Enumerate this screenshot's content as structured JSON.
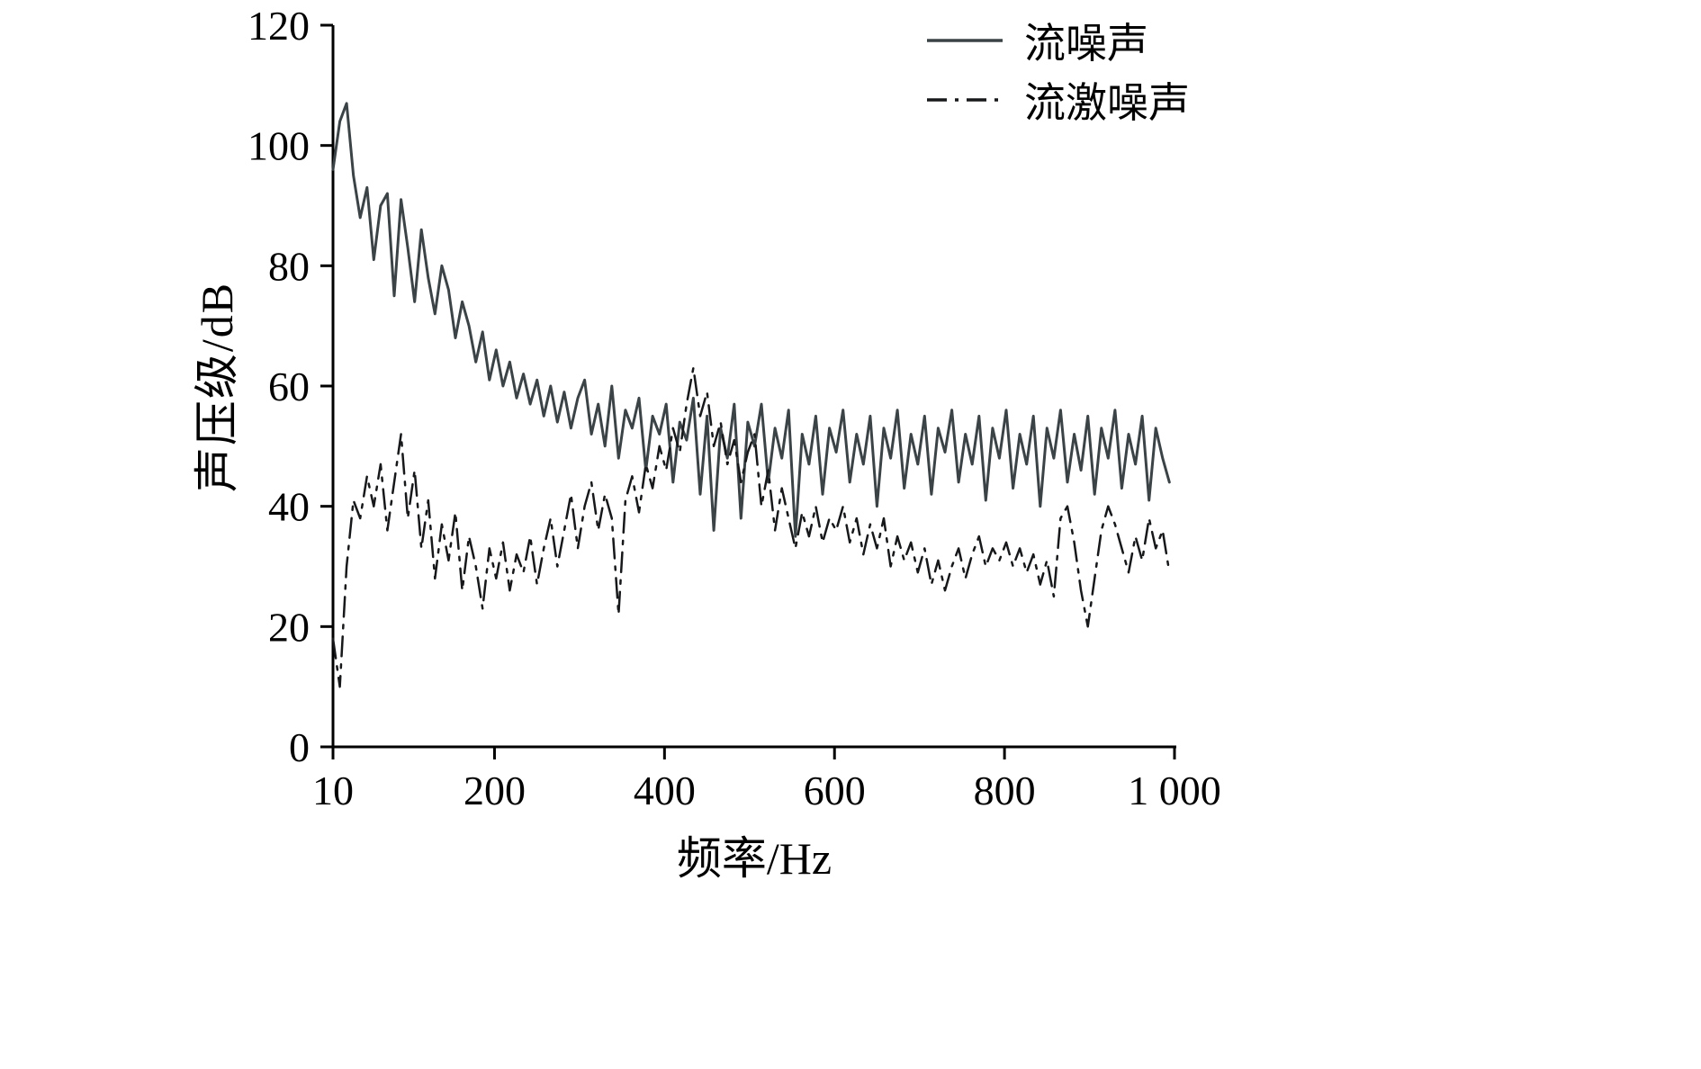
{
  "chart_data": {
    "type": "line",
    "title": "",
    "xlabel": "频率/Hz",
    "ylabel": "声压级/dB",
    "xlim": [
      10,
      1000
    ],
    "ylim": [
      0,
      120
    ],
    "grid": false,
    "legend_position": "top-right",
    "xticks": {
      "values": [
        10,
        200,
        400,
        600,
        800,
        1000
      ],
      "labels": [
        "10",
        "200",
        "400",
        "600",
        "800",
        "1 000"
      ]
    },
    "yticks": {
      "values": [
        0,
        20,
        40,
        60,
        80,
        100,
        120
      ],
      "labels": [
        "0",
        "20",
        "40",
        "60",
        "80",
        "100",
        "120"
      ]
    },
    "x": {
      "start": 10,
      "step": 8,
      "count": 124
    },
    "series": [
      {
        "name": "流噪声",
        "color": "#3c4347",
        "width": 3,
        "dash": null,
        "values": [
          96,
          104,
          107,
          95,
          88,
          93,
          81,
          90,
          92,
          75,
          91,
          83,
          74,
          86,
          78,
          72,
          80,
          76,
          68,
          74,
          70,
          64,
          69,
          61,
          66,
          60,
          64,
          58,
          62,
          57,
          61,
          55,
          60,
          54,
          59,
          53,
          58,
          61,
          52,
          57,
          50,
          60,
          48,
          56,
          53,
          58,
          46,
          55,
          52,
          57,
          44,
          54,
          51,
          58,
          42,
          55,
          36,
          53,
          48,
          57,
          38,
          54,
          50,
          57,
          44,
          53,
          48,
          56,
          35,
          52,
          47,
          55,
          42,
          53,
          49,
          56,
          44,
          52,
          47,
          55,
          40,
          53,
          48,
          56,
          43,
          52,
          47,
          55,
          42,
          53,
          49,
          56,
          44,
          52,
          47,
          55,
          41,
          53,
          48,
          56,
          43,
          52,
          47,
          55,
          40,
          53,
          48,
          56,
          44,
          52,
          46,
          55,
          42,
          53,
          48,
          56,
          43,
          52,
          47,
          55,
          41,
          53,
          48,
          44
        ]
      },
      {
        "name": "流激噪声",
        "color": "#16181a",
        "width": 2.5,
        "dash": "22 9 4 9",
        "values": [
          18,
          10,
          30,
          41,
          38,
          45,
          40,
          47,
          36,
          44,
          52,
          38,
          46,
          33,
          41,
          28,
          37,
          31,
          39,
          26,
          35,
          30,
          23,
          33,
          28,
          34,
          26,
          32,
          29,
          35,
          27,
          33,
          38,
          30,
          36,
          42,
          33,
          40,
          44,
          36,
          42,
          38,
          22,
          41,
          45,
          39,
          47,
          43,
          50,
          46,
          53,
          49,
          57,
          63,
          55,
          59,
          50,
          54,
          47,
          51,
          44,
          49,
          52,
          40,
          46,
          36,
          43,
          38,
          33,
          39,
          35,
          40,
          34,
          38,
          36,
          40,
          34,
          38,
          32,
          37,
          33,
          38,
          30,
          35,
          31,
          34,
          29,
          33,
          27,
          31,
          26,
          30,
          33,
          28,
          32,
          35,
          30,
          33,
          31,
          34,
          30,
          33,
          29,
          32,
          27,
          31,
          25,
          38,
          40,
          34,
          26,
          20,
          28,
          36,
          40,
          37,
          33,
          29,
          35,
          31,
          38,
          33,
          36,
          29
        ]
      }
    ]
  }
}
